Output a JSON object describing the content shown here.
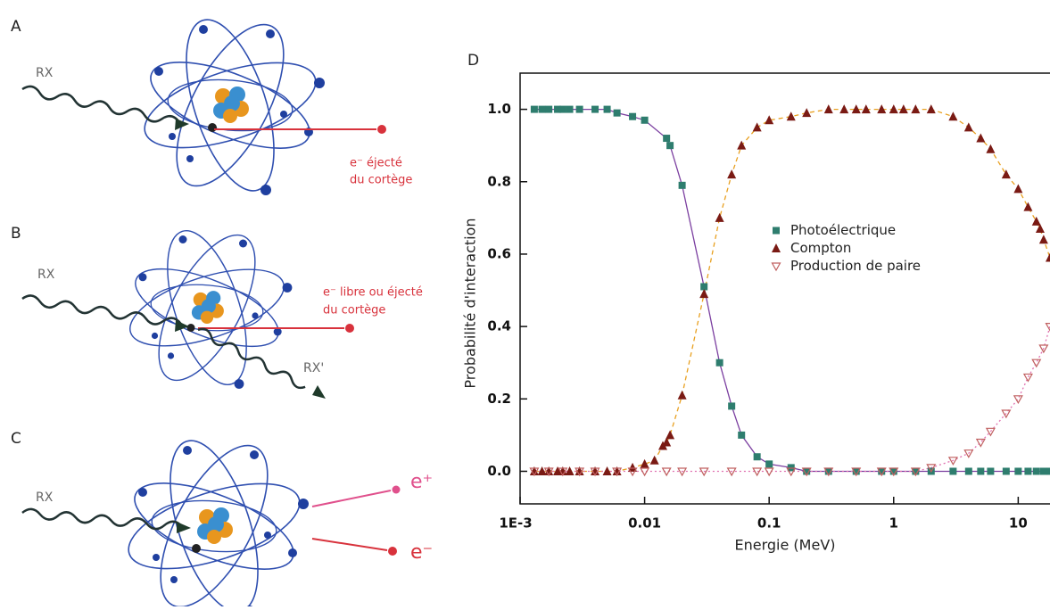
{
  "panels": {
    "a": {
      "label": "A",
      "incident": "RX",
      "electron": [
        "e⁻ éjecté",
        "du cortège"
      ]
    },
    "b": {
      "label": "B",
      "incident": "RX",
      "electron": [
        "e⁻ libre ou éjecté",
        "du cortège"
      ],
      "scattered": "RX'"
    },
    "c": {
      "label": "C",
      "incident": "RX",
      "positron": "e⁺",
      "electron": "e⁻"
    }
  },
  "chart_data": {
    "type": "scatter",
    "label": "D",
    "x_label": "Energie (MeV)",
    "y_label": "Probabilité d'interaction",
    "xscale": "log",
    "xlim": [
      0.001,
      18
    ],
    "ylim": [
      -0.09,
      1.1
    ],
    "xticks": [
      {
        "value": 0.001,
        "label": "1E-3"
      },
      0.01,
      0.1,
      1,
      10
    ],
    "yticks": [
      {
        "value": 0,
        "label": "0.0"
      },
      0.2,
      0.4,
      0.6,
      0.8,
      {
        "value": 1,
        "label": "1.0"
      }
    ],
    "legend": "center",
    "series": [
      {
        "name": "Photoélectrique",
        "color": "#2e7d6e",
        "marker": "square",
        "line_color": "#7b3fa0",
        "line_style": "solid",
        "x": [
          0.0013,
          0.0015,
          0.0017,
          0.002,
          0.0022,
          0.0025,
          0.003,
          0.004,
          0.005,
          0.006,
          0.008,
          0.01,
          0.015,
          0.016,
          0.02,
          0.03,
          0.04,
          0.05,
          0.06,
          0.08,
          0.1,
          0.15,
          0.2,
          0.3,
          0.5,
          0.8,
          1,
          1.5,
          2,
          3,
          4,
          5,
          6,
          8,
          10,
          12,
          14,
          16,
          18
        ],
        "values": [
          1.0,
          1.0,
          1.0,
          1.0,
          1.0,
          1.0,
          1.0,
          1.0,
          1.0,
          0.99,
          0.98,
          0.97,
          0.92,
          0.9,
          0.79,
          0.51,
          0.3,
          0.18,
          0.1,
          0.04,
          0.02,
          0.01,
          0,
          0,
          0,
          0,
          0,
          0,
          0,
          0,
          0,
          0,
          0,
          0,
          0,
          0,
          0,
          0,
          0
        ]
      },
      {
        "name": "Compton",
        "color": "#7a1a14",
        "marker": "triangle",
        "line_color": "#e8a020",
        "line_style": "dashed",
        "x": [
          0.0013,
          0.0015,
          0.0017,
          0.002,
          0.0022,
          0.0025,
          0.003,
          0.004,
          0.005,
          0.006,
          0.008,
          0.01,
          0.012,
          0.014,
          0.015,
          0.016,
          0.02,
          0.03,
          0.04,
          0.05,
          0.06,
          0.08,
          0.1,
          0.15,
          0.2,
          0.3,
          0.4,
          0.5,
          0.6,
          0.8,
          1,
          1.2,
          1.5,
          2,
          3,
          4,
          5,
          6,
          8,
          10,
          12,
          14,
          15,
          16,
          18
        ],
        "values": [
          0,
          0,
          0,
          0,
          0,
          0,
          0,
          0,
          0,
          0,
          0.01,
          0.02,
          0.03,
          0.07,
          0.08,
          0.1,
          0.21,
          0.49,
          0.7,
          0.82,
          0.9,
          0.95,
          0.97,
          0.98,
          0.99,
          1.0,
          1.0,
          1.0,
          1.0,
          1.0,
          1.0,
          1.0,
          1.0,
          1.0,
          0.98,
          0.95,
          0.92,
          0.89,
          0.82,
          0.78,
          0.73,
          0.69,
          0.67,
          0.64,
          0.59
        ]
      },
      {
        "name": "Production de paire",
        "color": "#c06060",
        "marker": "triangle-down-open",
        "line_color": "#e070b0",
        "line_style": "dotted",
        "x": [
          0.0013,
          0.0017,
          0.0022,
          0.003,
          0.004,
          0.006,
          0.008,
          0.01,
          0.015,
          0.02,
          0.03,
          0.05,
          0.08,
          0.1,
          0.15,
          0.2,
          0.3,
          0.5,
          0.8,
          1,
          1.5,
          2,
          3,
          4,
          5,
          6,
          8,
          10,
          12,
          14,
          16,
          18
        ],
        "values": [
          0,
          0,
          0,
          0,
          0,
          0,
          0,
          0,
          0,
          0,
          0,
          0,
          0,
          0,
          0,
          0,
          0,
          0,
          0,
          0,
          0,
          0.01,
          0.03,
          0.05,
          0.08,
          0.11,
          0.16,
          0.2,
          0.26,
          0.3,
          0.34,
          0.4
        ]
      }
    ]
  }
}
